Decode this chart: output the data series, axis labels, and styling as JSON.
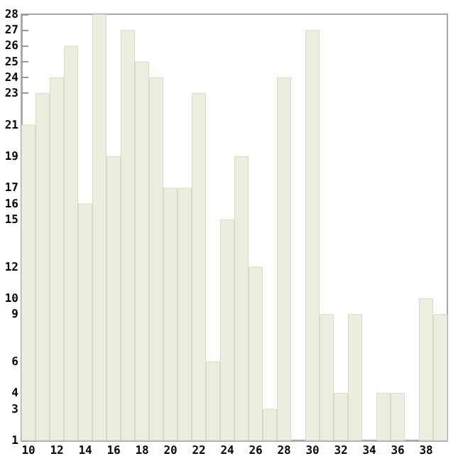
{
  "chart_data": {
    "type": "bar",
    "categories": [
      "10",
      null,
      "12",
      null,
      "14",
      null,
      "16",
      null,
      "18",
      null,
      "20",
      null,
      "22",
      null,
      "24",
      null,
      "26",
      null,
      "28",
      null,
      "30",
      null,
      "32",
      null,
      "34",
      null,
      "36",
      null,
      "38",
      null
    ],
    "values": [
      21,
      23,
      24,
      26,
      16,
      28,
      19,
      27,
      25,
      24,
      17,
      17,
      23,
      6,
      15,
      19,
      12,
      3,
      24,
      1,
      27,
      9,
      4,
      9,
      1,
      4,
      4,
      1,
      10,
      9
    ],
    "color": "#eeeee0",
    "ylim": [
      1,
      28
    ],
    "yticks": [
      1,
      3,
      4,
      6,
      9,
      10,
      12,
      15,
      16,
      17,
      19,
      21,
      23,
      24,
      25,
      26,
      27,
      28
    ]
  }
}
